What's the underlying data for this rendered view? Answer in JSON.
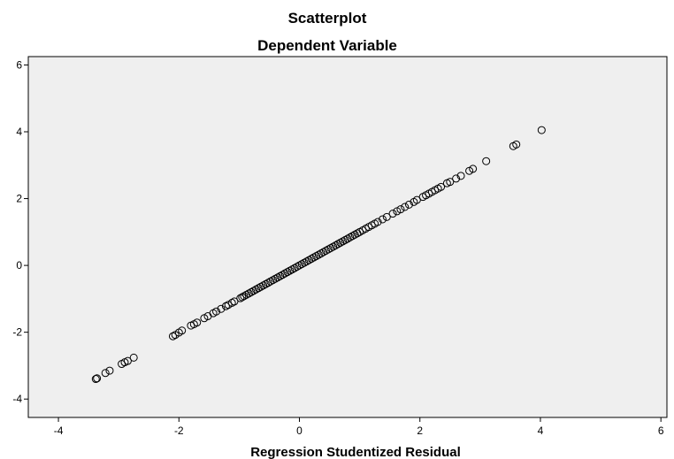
{
  "chart_data": {
    "type": "scatter",
    "title": "Scatterplot",
    "subtitle": "Dependent Variable",
    "xlabel": "Regression Studentized Residual",
    "ylabel": "",
    "xlim": [
      -4.5,
      6.1
    ],
    "ylim": [
      -4.55,
      6.25
    ],
    "x_ticks": [
      -4,
      -2,
      0,
      2,
      4,
      6
    ],
    "y_ticks": [
      -4,
      -2,
      0,
      2,
      4,
      6
    ],
    "grid": false,
    "plot_background": "#efefef",
    "marker": "hollow-circle",
    "marker_color": "#000000",
    "points": [
      [
        -3.38,
        -3.4
      ],
      [
        -3.36,
        -3.38
      ],
      [
        -3.22,
        -3.22
      ],
      [
        -3.15,
        -3.15
      ],
      [
        -2.95,
        -2.95
      ],
      [
        -2.9,
        -2.9
      ],
      [
        -2.85,
        -2.86
      ],
      [
        -2.75,
        -2.76
      ],
      [
        -2.1,
        -2.12
      ],
      [
        -2.06,
        -2.08
      ],
      [
        -2.0,
        -2.01
      ],
      [
        -1.95,
        -1.95
      ],
      [
        -1.8,
        -1.8
      ],
      [
        -1.75,
        -1.76
      ],
      [
        -1.7,
        -1.71
      ],
      [
        -1.58,
        -1.58
      ],
      [
        -1.52,
        -1.52
      ],
      [
        -1.43,
        -1.43
      ],
      [
        -1.38,
        -1.38
      ],
      [
        -1.3,
        -1.3
      ],
      [
        -1.22,
        -1.22
      ],
      [
        -1.18,
        -1.18
      ],
      [
        -1.12,
        -1.12
      ],
      [
        -1.08,
        -1.08
      ],
      [
        -0.98,
        -0.98
      ],
      [
        -0.95,
        -0.95
      ],
      [
        -0.92,
        -0.92
      ],
      [
        -0.88,
        -0.88
      ],
      [
        -0.84,
        -0.84
      ],
      [
        -0.8,
        -0.8
      ],
      [
        -0.76,
        -0.76
      ],
      [
        -0.72,
        -0.72
      ],
      [
        -0.68,
        -0.68
      ],
      [
        -0.64,
        -0.64
      ],
      [
        -0.6,
        -0.6
      ],
      [
        -0.56,
        -0.56
      ],
      [
        -0.52,
        -0.52
      ],
      [
        -0.48,
        -0.48
      ],
      [
        -0.44,
        -0.44
      ],
      [
        -0.4,
        -0.4
      ],
      [
        -0.36,
        -0.36
      ],
      [
        -0.32,
        -0.32
      ],
      [
        -0.28,
        -0.28
      ],
      [
        -0.24,
        -0.24
      ],
      [
        -0.2,
        -0.2
      ],
      [
        -0.16,
        -0.16
      ],
      [
        -0.12,
        -0.12
      ],
      [
        -0.08,
        -0.08
      ],
      [
        -0.04,
        -0.04
      ],
      [
        0.0,
        0.0
      ],
      [
        0.04,
        0.04
      ],
      [
        0.08,
        0.08
      ],
      [
        0.12,
        0.12
      ],
      [
        0.16,
        0.16
      ],
      [
        0.2,
        0.2
      ],
      [
        0.24,
        0.24
      ],
      [
        0.28,
        0.28
      ],
      [
        0.32,
        0.32
      ],
      [
        0.36,
        0.36
      ],
      [
        0.4,
        0.4
      ],
      [
        0.44,
        0.44
      ],
      [
        0.48,
        0.48
      ],
      [
        0.52,
        0.52
      ],
      [
        0.56,
        0.56
      ],
      [
        0.6,
        0.6
      ],
      [
        0.64,
        0.64
      ],
      [
        0.68,
        0.68
      ],
      [
        0.72,
        0.72
      ],
      [
        0.76,
        0.76
      ],
      [
        0.8,
        0.8
      ],
      [
        0.84,
        0.84
      ],
      [
        0.88,
        0.88
      ],
      [
        0.92,
        0.92
      ],
      [
        0.96,
        0.96
      ],
      [
        1.0,
        1.0
      ],
      [
        1.05,
        1.05
      ],
      [
        1.1,
        1.1
      ],
      [
        1.15,
        1.15
      ],
      [
        1.2,
        1.2
      ],
      [
        1.25,
        1.25
      ],
      [
        1.3,
        1.3
      ],
      [
        1.38,
        1.38
      ],
      [
        1.45,
        1.45
      ],
      [
        1.55,
        1.55
      ],
      [
        1.62,
        1.62
      ],
      [
        1.68,
        1.68
      ],
      [
        1.75,
        1.75
      ],
      [
        1.82,
        1.82
      ],
      [
        1.9,
        1.9
      ],
      [
        1.95,
        1.96
      ],
      [
        2.05,
        2.05
      ],
      [
        2.1,
        2.1
      ],
      [
        2.15,
        2.15
      ],
      [
        2.2,
        2.2
      ],
      [
        2.25,
        2.25
      ],
      [
        2.3,
        2.3
      ],
      [
        2.35,
        2.35
      ],
      [
        2.45,
        2.46
      ],
      [
        2.5,
        2.5
      ],
      [
        2.6,
        2.6
      ],
      [
        2.68,
        2.68
      ],
      [
        2.82,
        2.83
      ],
      [
        2.88,
        2.89
      ],
      [
        3.1,
        3.12
      ],
      [
        3.55,
        3.57
      ],
      [
        3.6,
        3.62
      ],
      [
        4.02,
        4.05
      ]
    ]
  }
}
